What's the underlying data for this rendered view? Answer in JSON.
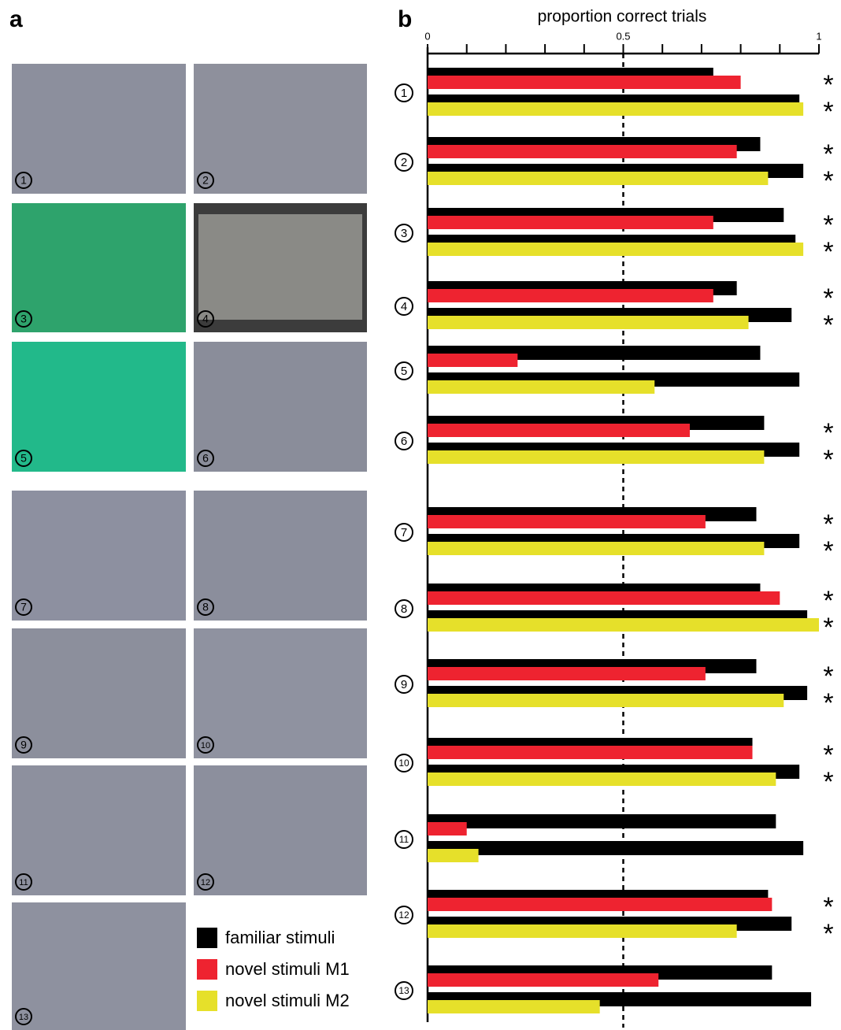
{
  "panel_labels": [
    "a",
    "b"
  ],
  "chart_data": {
    "type": "bar",
    "xlabel": "proportion correct trials",
    "categories": [
      "1",
      "2",
      "3",
      "4",
      "5",
      "6",
      "7",
      "8",
      "9",
      "10",
      "11",
      "12",
      "13"
    ],
    "series": [
      {
        "name": "familiar stimuli",
        "color": "#000000",
        "values": [
          0.73,
          0.85,
          0.91,
          0.79,
          0.85,
          0.86,
          0.84,
          0.85,
          0.84,
          0.83,
          0.89,
          0.87,
          0.88
        ],
        "values_m2": [
          0.95,
          0.96,
          0.94,
          0.93,
          0.95,
          0.95,
          0.95,
          0.97,
          0.97,
          0.95,
          0.96,
          0.93,
          0.98
        ]
      },
      {
        "name": "novel stimuli M1",
        "color": "#ee2330",
        "values": [
          0.8,
          0.79,
          0.73,
          0.73,
          0.23,
          0.67,
          0.71,
          0.9,
          0.71,
          0.83,
          0.1,
          0.88,
          0.59
        ]
      },
      {
        "name": "novel stimuli M2",
        "color": "#e6e02a",
        "values": [
          0.96,
          0.87,
          0.96,
          0.82,
          0.58,
          0.86,
          0.86,
          1.0,
          0.91,
          0.89,
          0.13,
          0.79,
          0.44
        ]
      }
    ],
    "sig_label": "*",
    "sig_m1": [
      true,
      true,
      true,
      true,
      false,
      true,
      true,
      true,
      true,
      true,
      false,
      true,
      false
    ],
    "sig_m2": [
      true,
      true,
      true,
      true,
      false,
      true,
      true,
      true,
      true,
      true,
      false,
      true,
      false
    ],
    "xlim": [
      0,
      1
    ],
    "xticks": [
      0,
      0.5,
      1
    ],
    "minor_xticks": [
      0.1,
      0.2,
      0.3,
      0.4,
      0.6,
      0.7,
      0.8,
      0.9
    ],
    "reference_line": 0.5
  }
}
